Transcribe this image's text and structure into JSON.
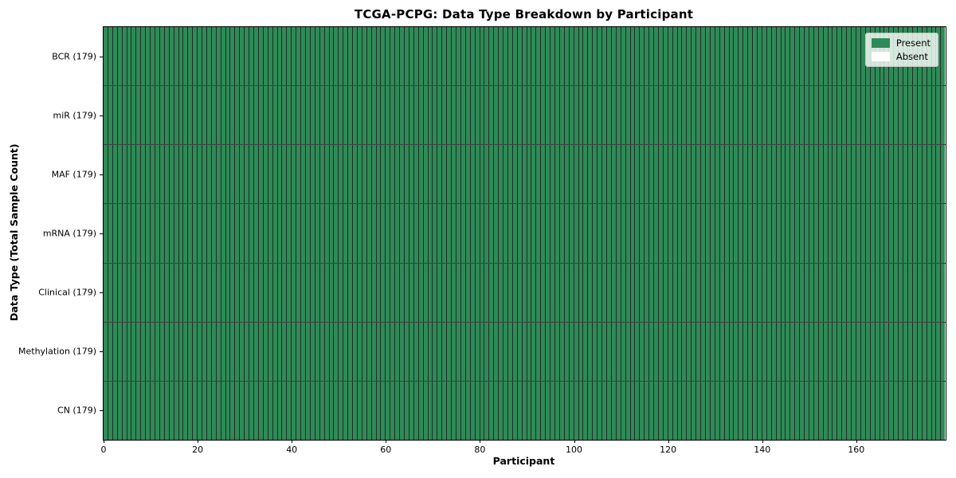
{
  "chart_data": {
    "type": "heatmap",
    "title": "TCGA-PCPG: Data Type Breakdown by Participant",
    "xlabel": "Participant",
    "ylabel": "Data Type (Total Sample Count)",
    "x_tick_values": [
      0,
      20,
      40,
      60,
      80,
      100,
      120,
      140,
      160
    ],
    "xlim": [
      0,
      179
    ],
    "n_participants": 179,
    "grid": false,
    "rows": [
      {
        "label": "BCR (179)",
        "data_type": "BCR",
        "total_sample_count": 179,
        "present": 179,
        "absent": 0
      },
      {
        "label": "miR (179)",
        "data_type": "miR",
        "total_sample_count": 179,
        "present": 179,
        "absent": 0
      },
      {
        "label": "MAF (179)",
        "data_type": "MAF",
        "total_sample_count": 179,
        "present": 179,
        "absent": 0
      },
      {
        "label": "mRNA (179)",
        "data_type": "mRNA",
        "total_sample_count": 179,
        "present": 179,
        "absent": 0
      },
      {
        "label": "Clinical (179)",
        "data_type": "Clinical",
        "total_sample_count": 179,
        "present": 179,
        "absent": 0
      },
      {
        "label": "Methylation (179)",
        "data_type": "Methylation",
        "total_sample_count": 179,
        "present": 179,
        "absent": 0
      },
      {
        "label": "CN (179)",
        "data_type": "CN",
        "total_sample_count": 179,
        "present": 179,
        "absent": 0
      }
    ],
    "legend": {
      "position": "upper-right",
      "entries": [
        {
          "label": "Present",
          "color": "#2e8b57"
        },
        {
          "label": "Absent",
          "color": "#ffffff"
        }
      ]
    },
    "colors": {
      "present": "#2e8b57",
      "absent": "#ffffff",
      "cell_edge": "#1f2d24",
      "axis": "#000000"
    }
  }
}
